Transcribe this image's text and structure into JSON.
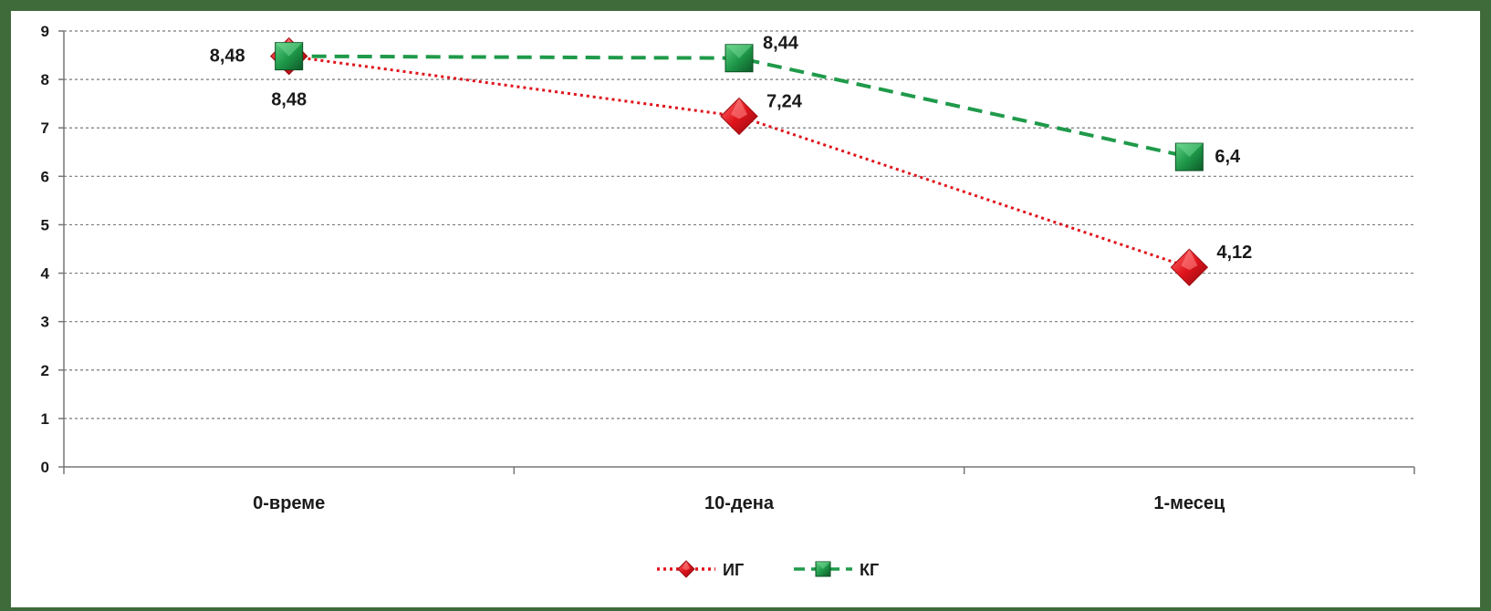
{
  "chart_data": {
    "type": "line",
    "categories": [
      "0-време",
      "10-дена",
      "1-месец"
    ],
    "series": [
      {
        "name": "ИГ",
        "values": [
          8.48,
          7.24,
          4.12
        ],
        "labels": [
          "8,48",
          "7,24",
          "4,12"
        ],
        "color": "#e0141c",
        "marker": "diamond",
        "line": "dotted"
      },
      {
        "name": "КГ",
        "values": [
          8.48,
          8.44,
          6.4
        ],
        "labels": [
          "8,48",
          "8,44",
          "6,4"
        ],
        "color": "#1f9a4a",
        "marker": "square",
        "line": "dashed"
      }
    ],
    "ylim": [
      0,
      9
    ],
    "yticks": [
      0,
      1,
      2,
      3,
      4,
      5,
      6,
      7,
      8,
      9
    ],
    "grid": true,
    "legend": "bottom-center",
    "title": "",
    "xlabel": "",
    "ylabel": ""
  }
}
